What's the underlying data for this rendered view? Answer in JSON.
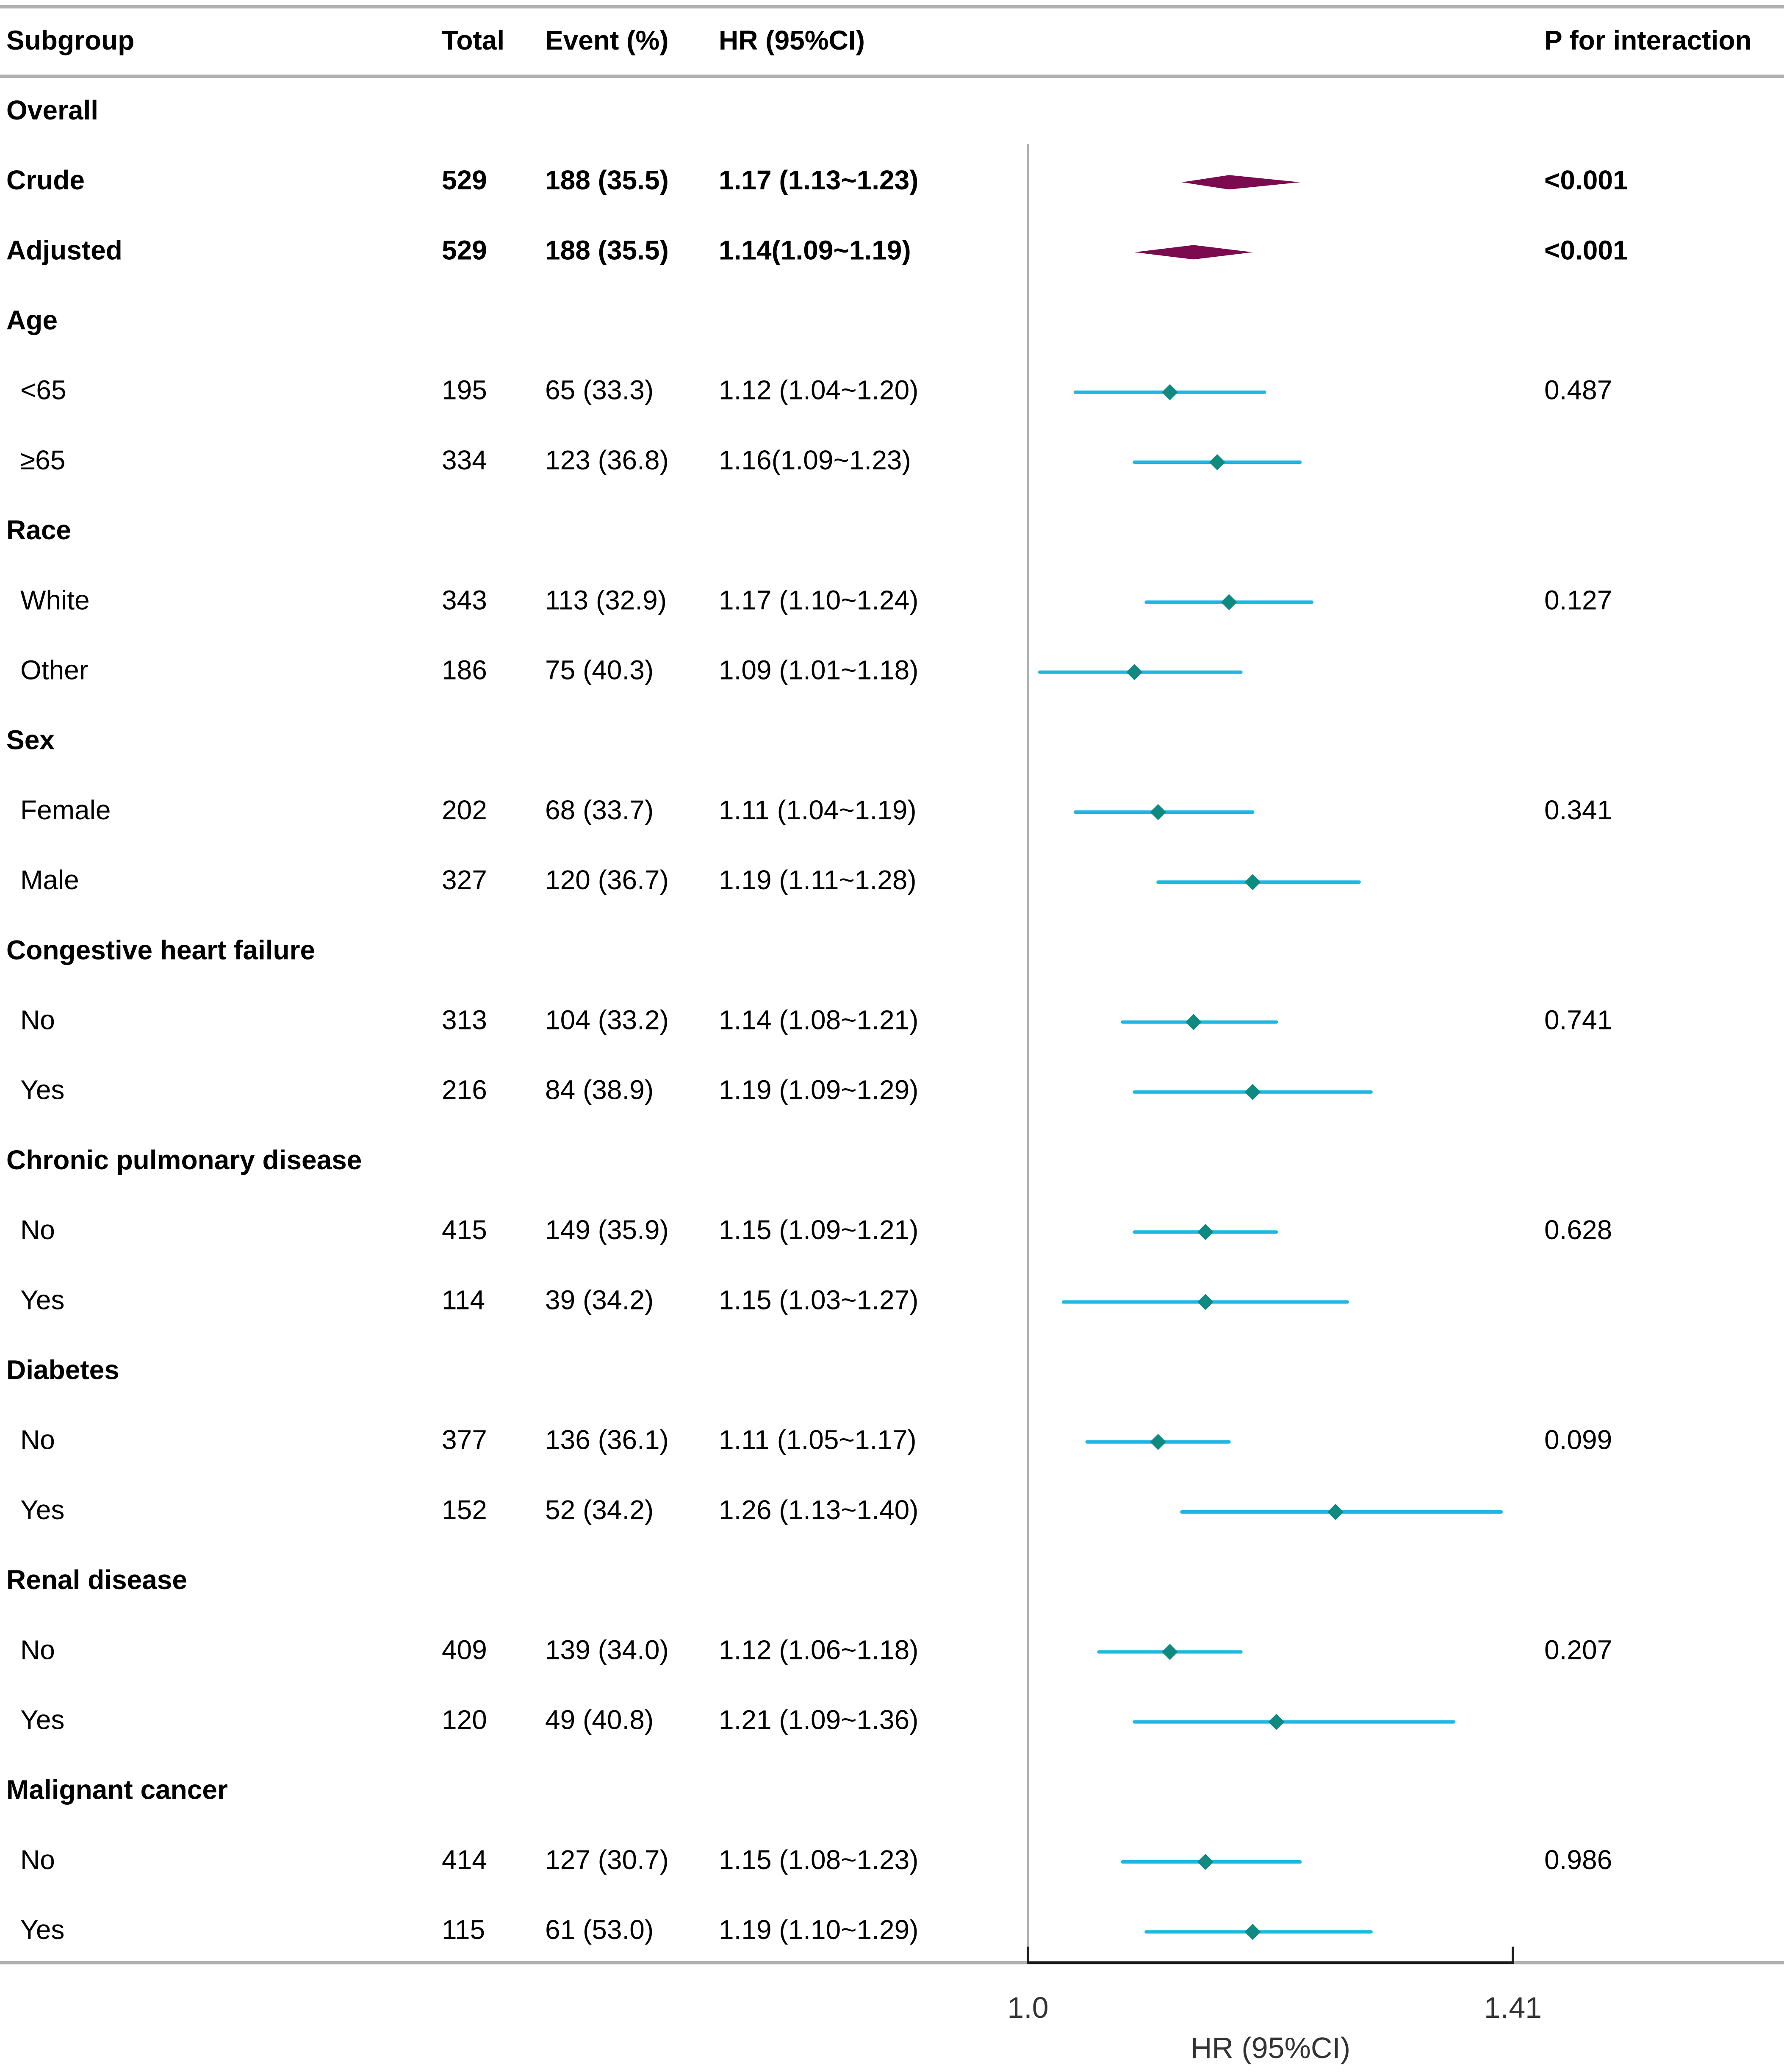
{
  "chart_data": {
    "type": "forest",
    "headers": {
      "subgroup": "Subgroup",
      "total": "Total",
      "event": "Event (%)",
      "hr": "HR (95%CI)",
      "p": "P for interaction"
    },
    "axis": {
      "min": 1.0,
      "max": 1.41,
      "ticks": [
        "1.0",
        "1.41"
      ],
      "label": "HR (95%CI)"
    },
    "colors": {
      "summary": "#7B0A4F",
      "point": "#0E8A80",
      "ci": "#1DB8E2",
      "rule": "#B0B0B0"
    },
    "rows": [
      {
        "kind": "header",
        "label": "Overall"
      },
      {
        "kind": "summary",
        "label": "Crude",
        "total": "529",
        "event": "188 (35.5)",
        "hr_text": "1.17 (1.13~1.23)",
        "hr": 1.17,
        "lo": 1.13,
        "hi": 1.23,
        "p": "<0.001"
      },
      {
        "kind": "summary",
        "label": "Adjusted",
        "total": "529",
        "event": "188 (35.5)",
        "hr_text": "1.14(1.09~1.19)",
        "hr": 1.14,
        "lo": 1.09,
        "hi": 1.19,
        "p": "<0.001"
      },
      {
        "kind": "header",
        "label": "Age"
      },
      {
        "kind": "item",
        "label": "<65",
        "total": "195",
        "event": "65 (33.3)",
        "hr_text": "1.12 (1.04~1.20)",
        "hr": 1.12,
        "lo": 1.04,
        "hi": 1.2,
        "p": "0.487"
      },
      {
        "kind": "item",
        "label": "≥65",
        "total": "334",
        "event": "123 (36.8)",
        "hr_text": "1.16(1.09~1.23)",
        "hr": 1.16,
        "lo": 1.09,
        "hi": 1.23,
        "p": ""
      },
      {
        "kind": "header",
        "label": "Race"
      },
      {
        "kind": "item",
        "label": "White",
        "total": "343",
        "event": "113 (32.9)",
        "hr_text": "1.17 (1.10~1.24)",
        "hr": 1.17,
        "lo": 1.1,
        "hi": 1.24,
        "p": "0.127"
      },
      {
        "kind": "item",
        "label": "Other",
        "total": "186",
        "event": "75 (40.3)",
        "hr_text": "1.09 (1.01~1.18)",
        "hr": 1.09,
        "lo": 1.01,
        "hi": 1.18,
        "p": ""
      },
      {
        "kind": "header",
        "label": "Sex"
      },
      {
        "kind": "item",
        "label": "Female",
        "total": "202",
        "event": "68 (33.7)",
        "hr_text": "1.11 (1.04~1.19)",
        "hr": 1.11,
        "lo": 1.04,
        "hi": 1.19,
        "p": "0.341"
      },
      {
        "kind": "item",
        "label": "Male",
        "total": "327",
        "event": "120 (36.7)",
        "hr_text": "1.19 (1.11~1.28)",
        "hr": 1.19,
        "lo": 1.11,
        "hi": 1.28,
        "p": ""
      },
      {
        "kind": "header",
        "label": "Congestive heart failure"
      },
      {
        "kind": "item",
        "label": "No",
        "total": "313",
        "event": "104 (33.2)",
        "hr_text": "1.14 (1.08~1.21)",
        "hr": 1.14,
        "lo": 1.08,
        "hi": 1.21,
        "p": "0.741"
      },
      {
        "kind": "item",
        "label": "Yes",
        "total": "216",
        "event": "84 (38.9)",
        "hr_text": "1.19 (1.09~1.29)",
        "hr": 1.19,
        "lo": 1.09,
        "hi": 1.29,
        "p": ""
      },
      {
        "kind": "header",
        "label": "Chronic pulmonary disease"
      },
      {
        "kind": "item",
        "label": "No",
        "total": "415",
        "event": "149 (35.9)",
        "hr_text": "1.15 (1.09~1.21)",
        "hr": 1.15,
        "lo": 1.09,
        "hi": 1.21,
        "p": "0.628"
      },
      {
        "kind": "item",
        "label": "Yes",
        "total": "114",
        "event": "39 (34.2)",
        "hr_text": "1.15 (1.03~1.27)",
        "hr": 1.15,
        "lo": 1.03,
        "hi": 1.27,
        "p": ""
      },
      {
        "kind": "header",
        "label": "Diabetes"
      },
      {
        "kind": "item",
        "label": "No",
        "total": "377",
        "event": "136 (36.1)",
        "hr_text": "1.11 (1.05~1.17)",
        "hr": 1.11,
        "lo": 1.05,
        "hi": 1.17,
        "p": "0.099"
      },
      {
        "kind": "item",
        "label": "Yes",
        "total": "152",
        "event": "52 (34.2)",
        "hr_text": "1.26 (1.13~1.40)",
        "hr": 1.26,
        "lo": 1.13,
        "hi": 1.4,
        "p": ""
      },
      {
        "kind": "header",
        "label": "Renal disease"
      },
      {
        "kind": "item",
        "label": "No",
        "total": "409",
        "event": "139 (34.0)",
        "hr_text": "1.12 (1.06~1.18)",
        "hr": 1.12,
        "lo": 1.06,
        "hi": 1.18,
        "p": "0.207"
      },
      {
        "kind": "item",
        "label": "Yes",
        "total": "120",
        "event": "49 (40.8)",
        "hr_text": "1.21 (1.09~1.36)",
        "hr": 1.21,
        "lo": 1.09,
        "hi": 1.36,
        "p": ""
      },
      {
        "kind": "header",
        "label": "Malignant cancer"
      },
      {
        "kind": "item",
        "label": "No",
        "total": "414",
        "event": "127 (30.7)",
        "hr_text": "1.15 (1.08~1.23)",
        "hr": 1.15,
        "lo": 1.08,
        "hi": 1.23,
        "p": "0.986"
      },
      {
        "kind": "item",
        "label": "Yes",
        "total": "115",
        "event": "61 (53.0)",
        "hr_text": "1.19 (1.10~1.29)",
        "hr": 1.19,
        "lo": 1.1,
        "hi": 1.29,
        "p": ""
      }
    ]
  }
}
